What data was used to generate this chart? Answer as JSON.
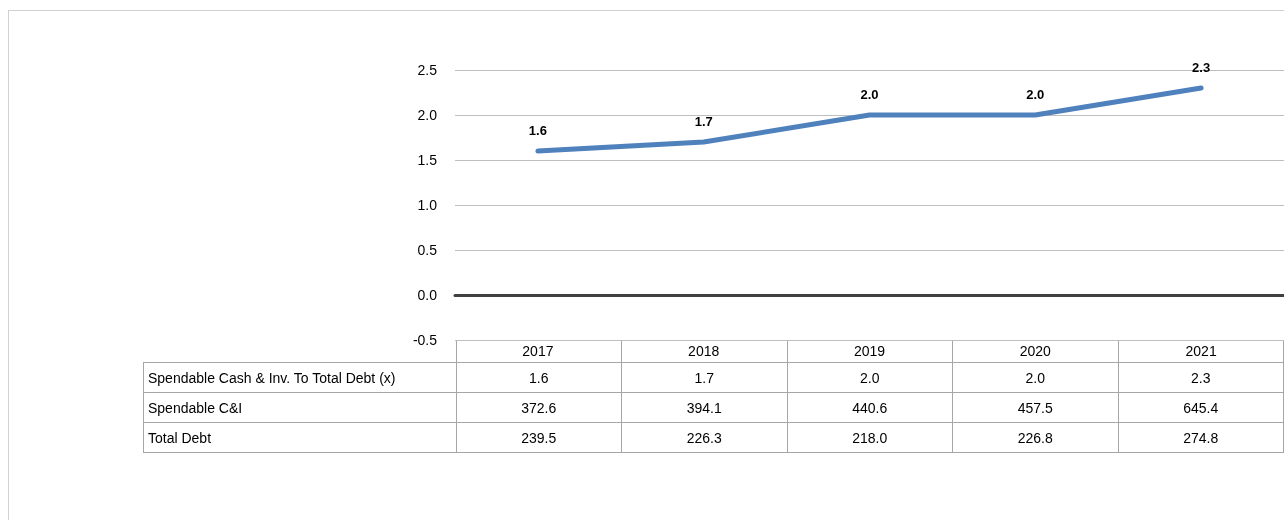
{
  "chart_data": {
    "type": "line",
    "categories": [
      "2017",
      "2018",
      "2019",
      "2020",
      "2021"
    ],
    "series": [
      {
        "name": "Spendable Cash & Inv. To Total Debt (x)",
        "color": "#4f81bd",
        "values": [
          1.6,
          1.7,
          2.0,
          2.0,
          2.3
        ],
        "value_labels": [
          "1.6",
          "1.7",
          "2.0",
          "2.0",
          "2.3"
        ]
      },
      {
        "name": "Spendable C&I",
        "type": "other",
        "values": [
          null,
          null,
          null,
          null,
          null
        ],
        "value_labels": [
          "372.6",
          "394.1",
          "440.6",
          "457.5",
          "645.4"
        ]
      },
      {
        "name": "Total Debt",
        "type": "other",
        "values": [
          null,
          null,
          null,
          null,
          null
        ],
        "value_labels": [
          "239.5",
          "226.3",
          "218.0",
          "226.8",
          "274.8"
        ]
      }
    ],
    "ylim": [
      -0.5,
      2.5
    ],
    "yticks": [
      {
        "value": -0.5,
        "label": "-0.5"
      },
      {
        "value": 0,
        "label": "0.0"
      },
      {
        "value": 0.5,
        "label": "0.5"
      },
      {
        "value": 1,
        "label": "1.0"
      },
      {
        "value": 1.5,
        "label": "1.5"
      },
      {
        "value": 2,
        "label": "2.0"
      },
      {
        "value": 2.5,
        "label": "2.5"
      }
    ],
    "grid": "y",
    "marker": "none",
    "line_style": "solid"
  }
}
